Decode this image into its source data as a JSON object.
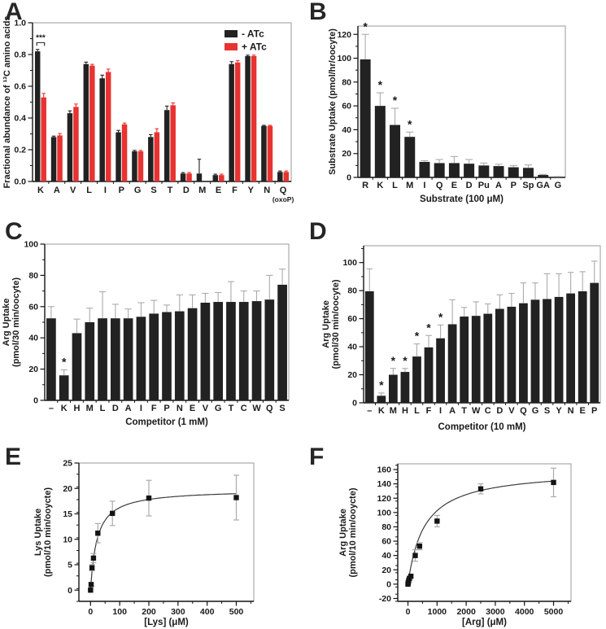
{
  "panels": [
    {
      "letter": "A"
    },
    {
      "letter": "B"
    },
    {
      "letter": "C"
    },
    {
      "letter": "D"
    },
    {
      "letter": "E"
    },
    {
      "letter": "F"
    }
  ],
  "colors": {
    "bar_black": "#222222",
    "bar_red": "#e73331",
    "error_gray": "#ababab",
    "axis": "#141414",
    "frame": "#9a9a9a",
    "curve": "#3c3c3c"
  },
  "chart_data": [
    {
      "id": "A",
      "type": "bar",
      "categories": [
        "K",
        "A",
        "V",
        "L",
        "I",
        "P",
        "G",
        "S",
        "T",
        "D",
        "M",
        "E",
        "F",
        "Y",
        "N",
        "Q"
      ],
      "category_note": {
        "index": 15,
        "text": "(oxoP)"
      },
      "series": [
        {
          "name": "- ATc",
          "color": "#222222",
          "values": [
            0.82,
            0.28,
            0.43,
            0.74,
            0.65,
            0.31,
            0.19,
            0.28,
            0.45,
            0.05,
            0.05,
            0.04,
            0.74,
            0.79,
            0.35,
            0.06
          ],
          "errors": [
            0.012,
            0.006,
            0.015,
            0.012,
            0.02,
            0.012,
            0.006,
            0.015,
            0.025,
            0.006,
            0.09,
            0.006,
            0.015,
            0.006,
            0.004,
            0.006
          ]
        },
        {
          "name": "+ ATc",
          "color": "#e73331",
          "values": [
            0.53,
            0.29,
            0.47,
            0.73,
            0.69,
            0.36,
            0.19,
            0.31,
            0.48,
            0.05,
            0,
            0.04,
            0.75,
            0.79,
            0.35,
            0.06
          ],
          "errors": [
            0.025,
            0.012,
            0.018,
            0.008,
            0.018,
            0.008,
            0.006,
            0.022,
            0.015,
            0.006,
            0,
            0.006,
            0.012,
            0.006,
            0.004,
            0.006
          ]
        }
      ],
      "ylabel": [
        "Fractional abundance of ¹³C amino acids"
      ],
      "ylim": [
        0,
        1.0
      ],
      "yticks": [
        0,
        0.2,
        0.4,
        0.6,
        0.8,
        1.0
      ],
      "ytick_decimals": 1,
      "yminor": 0.1,
      "legend": true,
      "significance": {
        "text": "***",
        "category_index": 0
      }
    },
    {
      "id": "B",
      "type": "bar",
      "categories": [
        "R",
        "K",
        "L",
        "M",
        "I",
        "Q",
        "E",
        "D",
        "Pu",
        "A",
        "P",
        "Sp",
        "GA",
        "G"
      ],
      "series": [
        {
          "name": "substrate uptake",
          "color": "#222222",
          "values": [
            99,
            60,
            44,
            34,
            13,
            12,
            12,
            11.5,
            10,
            9.5,
            8.5,
            8,
            2,
            0.4
          ],
          "errors": [
            21,
            11,
            14,
            4,
            1,
            3,
            5.5,
            3.5,
            2,
            1.5,
            1.5,
            2.5,
            0.5,
            0.3
          ]
        }
      ],
      "stars": [
        0,
        1,
        2,
        3
      ],
      "star_symbol": "*",
      "ylabel": [
        "Substrate Uptake (pmol/hr/oocyte)"
      ],
      "xlabel": "Substrate (100 μM)",
      "ylim": [
        0,
        127
      ],
      "yticks": [
        0,
        20,
        40,
        60,
        80,
        100,
        120
      ],
      "ytick_decimals": 0,
      "yminor": 10
    },
    {
      "id": "C",
      "type": "bar",
      "categories": [
        "–",
        "K",
        "H",
        "M",
        "L",
        "D",
        "A",
        "I",
        "F",
        "P",
        "N",
        "E",
        "V",
        "G",
        "T",
        "C",
        "W",
        "Q",
        "S"
      ],
      "series": [
        {
          "name": "arg uptake",
          "color": "#222222",
          "values": [
            52.5,
            16,
            43,
            50,
            52.5,
            52.5,
            52.5,
            53.5,
            55.5,
            56.5,
            57,
            59,
            62.5,
            63,
            63,
            63,
            63.5,
            64.5,
            74
          ],
          "errors": [
            7.5,
            3.5,
            9,
            9,
            17,
            9,
            6,
            9,
            8.5,
            4.5,
            10.5,
            8.5,
            6,
            6,
            13,
            7,
            6.5,
            15.5,
            10
          ]
        }
      ],
      "stars": [
        1
      ],
      "star_symbol": "*",
      "ylabel": [
        "Arg Uptake",
        "(pmol/30 min/oocyte)"
      ],
      "xlabel": "Competitor (1 mM)",
      "ylim": [
        0,
        100
      ],
      "yticks": [
        0,
        20,
        40,
        60,
        80,
        100
      ],
      "ytick_decimals": 0,
      "yminor": 10
    },
    {
      "id": "D",
      "type": "bar",
      "categories": [
        "–",
        "K",
        "M",
        "H",
        "L",
        "F",
        "I",
        "A",
        "T",
        "W",
        "C",
        "D",
        "V",
        "Q",
        "G",
        "S",
        "Y",
        "N",
        "E",
        "P"
      ],
      "series": [
        {
          "name": "arg uptake",
          "color": "#222222",
          "values": [
            79.5,
            5,
            20,
            22,
            33,
            39.5,
            46,
            56,
            61.5,
            62,
            63.5,
            67,
            68.5,
            71,
            73.5,
            74,
            75.5,
            78,
            79.5,
            85.5
          ],
          "errors": [
            16,
            2,
            4.5,
            2.5,
            9,
            8.5,
            9.5,
            17.5,
            6.5,
            10,
            7,
            10,
            9.5,
            14.5,
            12,
            18,
            16.5,
            15,
            14,
            15.5
          ]
        }
      ],
      "stars": [
        1,
        2,
        3,
        4,
        5,
        6
      ],
      "star_symbol": "*",
      "ylabel": [
        "Arg Uptake",
        "(pmol/30 min/oocyte)"
      ],
      "xlabel": "Competitor (10 mM)",
      "ylim": [
        0,
        112
      ],
      "yticks": [
        0,
        20,
        40,
        60,
        80,
        100
      ],
      "ytick_decimals": 0,
      "yminor": 10
    },
    {
      "id": "E",
      "type": "scatter",
      "points": [
        {
          "x": 0,
          "y": 0,
          "e": 0
        },
        {
          "x": 2,
          "y": 1.1,
          "e": 0.3
        },
        {
          "x": 5,
          "y": 4.4,
          "e": 0.6
        },
        {
          "x": 10,
          "y": 6.3,
          "e": 0.9
        },
        {
          "x": 25,
          "y": 11.2,
          "e": 1.9
        },
        {
          "x": 75,
          "y": 15.1,
          "e": 2.4
        },
        {
          "x": 200,
          "y": 18.1,
          "e": 3.5
        },
        {
          "x": 500,
          "y": 18.2,
          "e": 4.4
        }
      ],
      "fit": {
        "type": "michaelis_menten",
        "vmax": 19.8,
        "km": 22
      },
      "ylabel": [
        "Lys Uptake",
        "(pmol/10 min/ooycte)"
      ],
      "xlabel": "[Lys] (μM)",
      "xlim": [
        -40,
        560
      ],
      "xticks": [
        0,
        100,
        200,
        300,
        400,
        500
      ],
      "xminor": 50,
      "ylim": [
        -2.2,
        25
      ],
      "yticks": [
        0,
        5,
        10,
        15,
        20,
        25
      ],
      "ytick_decimals": 0,
      "yminor": 2.5
    },
    {
      "id": "F",
      "type": "scatter",
      "points": [
        {
          "x": 0,
          "y": 0,
          "e": 0
        },
        {
          "x": 10,
          "y": 2,
          "e": 0
        },
        {
          "x": 25,
          "y": 5,
          "e": 0
        },
        {
          "x": 50,
          "y": 8,
          "e": 0
        },
        {
          "x": 100,
          "y": 11,
          "e": 2
        },
        {
          "x": 250,
          "y": 40,
          "e": 8
        },
        {
          "x": 400,
          "y": 53,
          "e": 5
        },
        {
          "x": 1000,
          "y": 88,
          "e": 8
        },
        {
          "x": 2500,
          "y": 133,
          "e": 7
        },
        {
          "x": 5000,
          "y": 142,
          "e": 20
        }
      ],
      "fit": {
        "type": "michaelis_menten",
        "vmax": 160,
        "km": 560
      },
      "ylabel": [
        "Arg Uptake",
        "(pmol/10 min/ooycte)"
      ],
      "xlabel": "[Arg] (μM)",
      "xlim": [
        -350,
        5600
      ],
      "xticks": [
        0,
        1000,
        2000,
        3000,
        4000,
        5000
      ],
      "xminor": 500,
      "ylim": [
        -24,
        168
      ],
      "yticks": [
        -20,
        0,
        20,
        40,
        60,
        80,
        100,
        120,
        140,
        160
      ],
      "ytick_decimals": 0,
      "yminor": 10
    }
  ]
}
